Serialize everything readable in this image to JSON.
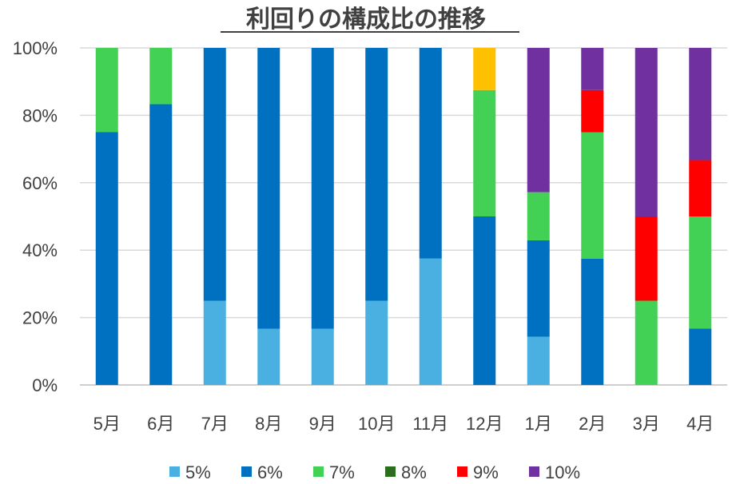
{
  "chart_data": {
    "type": "bar",
    "stacked": true,
    "title": "利回りの構成比の推移",
    "categories": [
      "5月",
      "6月",
      "7月",
      "8月",
      "9月",
      "10月",
      "11月",
      "12月",
      "1月",
      "2月",
      "3月",
      "4月"
    ],
    "yticks": [
      "0%",
      "20%",
      "40%",
      "60%",
      "80%",
      "100%"
    ],
    "ylim": [
      0,
      100
    ],
    "grid": true,
    "legend_position": "bottom",
    "series": [
      {
        "name": "5%",
        "color": "#4AAFE1",
        "values": [
          0,
          0,
          25,
          16.7,
          16.7,
          25,
          37.5,
          0,
          14.3,
          0,
          0,
          0
        ]
      },
      {
        "name": "6%",
        "color": "#0070C0",
        "values": [
          75,
          83.3,
          75,
          83.3,
          83.3,
          75,
          62.5,
          50,
          28.6,
          37.5,
          0,
          16.7
        ]
      },
      {
        "name": "7%",
        "color": "#43D155",
        "values": [
          25,
          16.7,
          0,
          0,
          0,
          0,
          0,
          37.5,
          14.3,
          37.5,
          25,
          33.3
        ]
      },
      {
        "name": "8%",
        "color": "#2A6E1E",
        "values": [
          0,
          0,
          0,
          0,
          0,
          0,
          0,
          0,
          0,
          0,
          0,
          0
        ]
      },
      {
        "name": "9%",
        "color": "#FF0000",
        "values": [
          0,
          0,
          0,
          0,
          0,
          0,
          0,
          0,
          0,
          12.5,
          25,
          16.7
        ]
      },
      {
        "name": "10%",
        "color": "#7030A0",
        "values": [
          0,
          0,
          0,
          0,
          0,
          0,
          0,
          0,
          42.8,
          12.5,
          50,
          33.3
        ]
      },
      {
        "name": "",
        "color": "#FFC000",
        "values": [
          0,
          0,
          0,
          0,
          0,
          0,
          0,
          12.5,
          0,
          0,
          0,
          0
        ]
      }
    ]
  }
}
